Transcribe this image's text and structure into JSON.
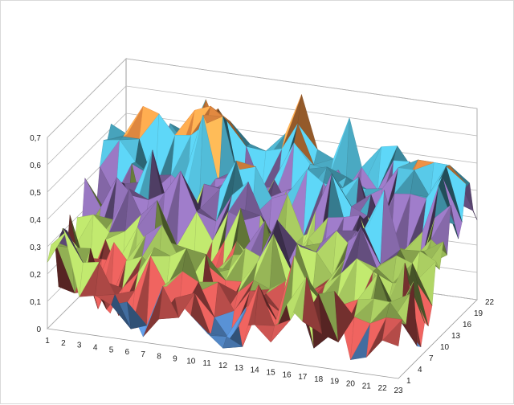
{
  "chart_data": {
    "type": "surface-3d",
    "title": "",
    "xlabel": "",
    "ylabel": "",
    "zlabel": "",
    "x_categories": [
      "1",
      "2",
      "3",
      "4",
      "5",
      "6",
      "7",
      "8",
      "9",
      "10",
      "11",
      "12",
      "13",
      "14",
      "15",
      "16",
      "17",
      "18",
      "19",
      "20",
      "21",
      "22",
      "23"
    ],
    "y_tick_labels": [
      "1",
      "4",
      "7",
      "10",
      "13",
      "16",
      "19",
      "22"
    ],
    "z_tick_labels": [
      "0",
      "0,1",
      "0,2",
      "0,3",
      "0,4",
      "0,5",
      "0,6",
      "0,7"
    ],
    "zlim": [
      0,
      0.7
    ],
    "z_band_colors": [
      "#4f81bd",
      "#c0504d",
      "#9bbb59",
      "#8064a2",
      "#4bacc6",
      "#f79646",
      "#a6c8f0"
    ],
    "legend": "none",
    "grid": true
  }
}
